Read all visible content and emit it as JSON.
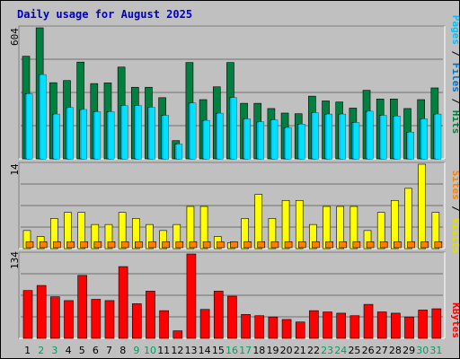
{
  "chart_data": {
    "type": "bar",
    "title": "Daily usage for August 2025",
    "categories": [
      "1",
      "2",
      "3",
      "4",
      "5",
      "6",
      "7",
      "8",
      "9",
      "10",
      "11",
      "12",
      "13",
      "14",
      "15",
      "16",
      "17",
      "18",
      "19",
      "20",
      "21",
      "22",
      "23",
      "24",
      "25",
      "26",
      "27",
      "28",
      "29",
      "30",
      "31"
    ],
    "weekend_days": [
      "2",
      "3",
      "9",
      "10",
      "16",
      "17",
      "23",
      "24",
      "30",
      "31"
    ],
    "panels": [
      {
        "id": "hits",
        "ymax_label": "604",
        "ylim": [
          0,
          604
        ],
        "side_label": [
          "Pages",
          "Files",
          "Hits"
        ],
        "series": [
          {
            "name": "Hits",
            "color": "#008040",
            "values": [
              473,
              604,
              351,
              361,
              446,
              347,
              350,
              423,
              330,
              330,
              282,
              84,
              444,
              273,
              332,
              444,
              256,
              256,
              232,
              211,
              208,
              289,
              267,
              262,
              234,
              316,
              276,
              276,
              232,
              273,
              327
            ]
          },
          {
            "name": "Files",
            "color": "#00b0e0",
            "values": [
              300,
              388,
              206,
              236,
              227,
              217,
              217,
              245,
              245,
              237,
              200,
              68,
              257,
              177,
              210,
              282,
              184,
              170,
              179,
              144,
              160,
              212,
              206,
              206,
              167,
              219,
              200,
              197,
              123,
              184,
              206
            ]
          },
          {
            "name": "Pages",
            "color": "#00e0ff",
            "values": [
              300,
              388,
              206,
              236,
              227,
              217,
              217,
              245,
              245,
              237,
              200,
              68,
              257,
              177,
              210,
              282,
              184,
              170,
              179,
              144,
              160,
              212,
              206,
              206,
              167,
              219,
              200,
              197,
              123,
              184,
              206
            ]
          }
        ]
      },
      {
        "id": "visits",
        "ymax_label": "14",
        "ylim": [
          0,
          14
        ],
        "side_label": [
          "Sites",
          "Visits"
        ],
        "series": [
          {
            "name": "Visits",
            "color": "#ffff00",
            "values": [
              3,
              2,
              5,
              6,
              6,
              4,
              4,
              6,
              5,
              4,
              3,
              4,
              7,
              7,
              2,
              1,
              5,
              9,
              5,
              8,
              8,
              4,
              7,
              7,
              7,
              3,
              6,
              8,
              10,
              14,
              6
            ]
          },
          {
            "name": "Sites",
            "color": "#ff8000",
            "values": [
              1,
              1,
              1,
              1,
              1,
              1,
              1,
              1,
              1,
              1,
              1,
              1,
              1,
              1,
              1,
              1,
              1,
              1,
              1,
              1,
              1,
              1,
              1,
              1,
              1,
              1,
              1,
              1,
              1,
              1,
              1
            ]
          }
        ]
      },
      {
        "id": "kbytes",
        "ymax_label": "134",
        "ylim": [
          0,
          134
        ],
        "side_label": [
          "KBytes"
        ],
        "series": [
          {
            "name": "KBytes",
            "color": "#ff0000",
            "values": [
              76,
              84,
              66,
              60,
              100,
              62,
              60,
              114,
              55,
              75,
              44,
              12,
              134,
              46,
              75,
              67,
              38,
              36,
              34,
              30,
              26,
              44,
              42,
              40,
              36,
              54,
              42,
              40,
              34,
              45,
              47
            ]
          }
        ]
      }
    ],
    "grid": true,
    "legend": "right-vertical"
  }
}
